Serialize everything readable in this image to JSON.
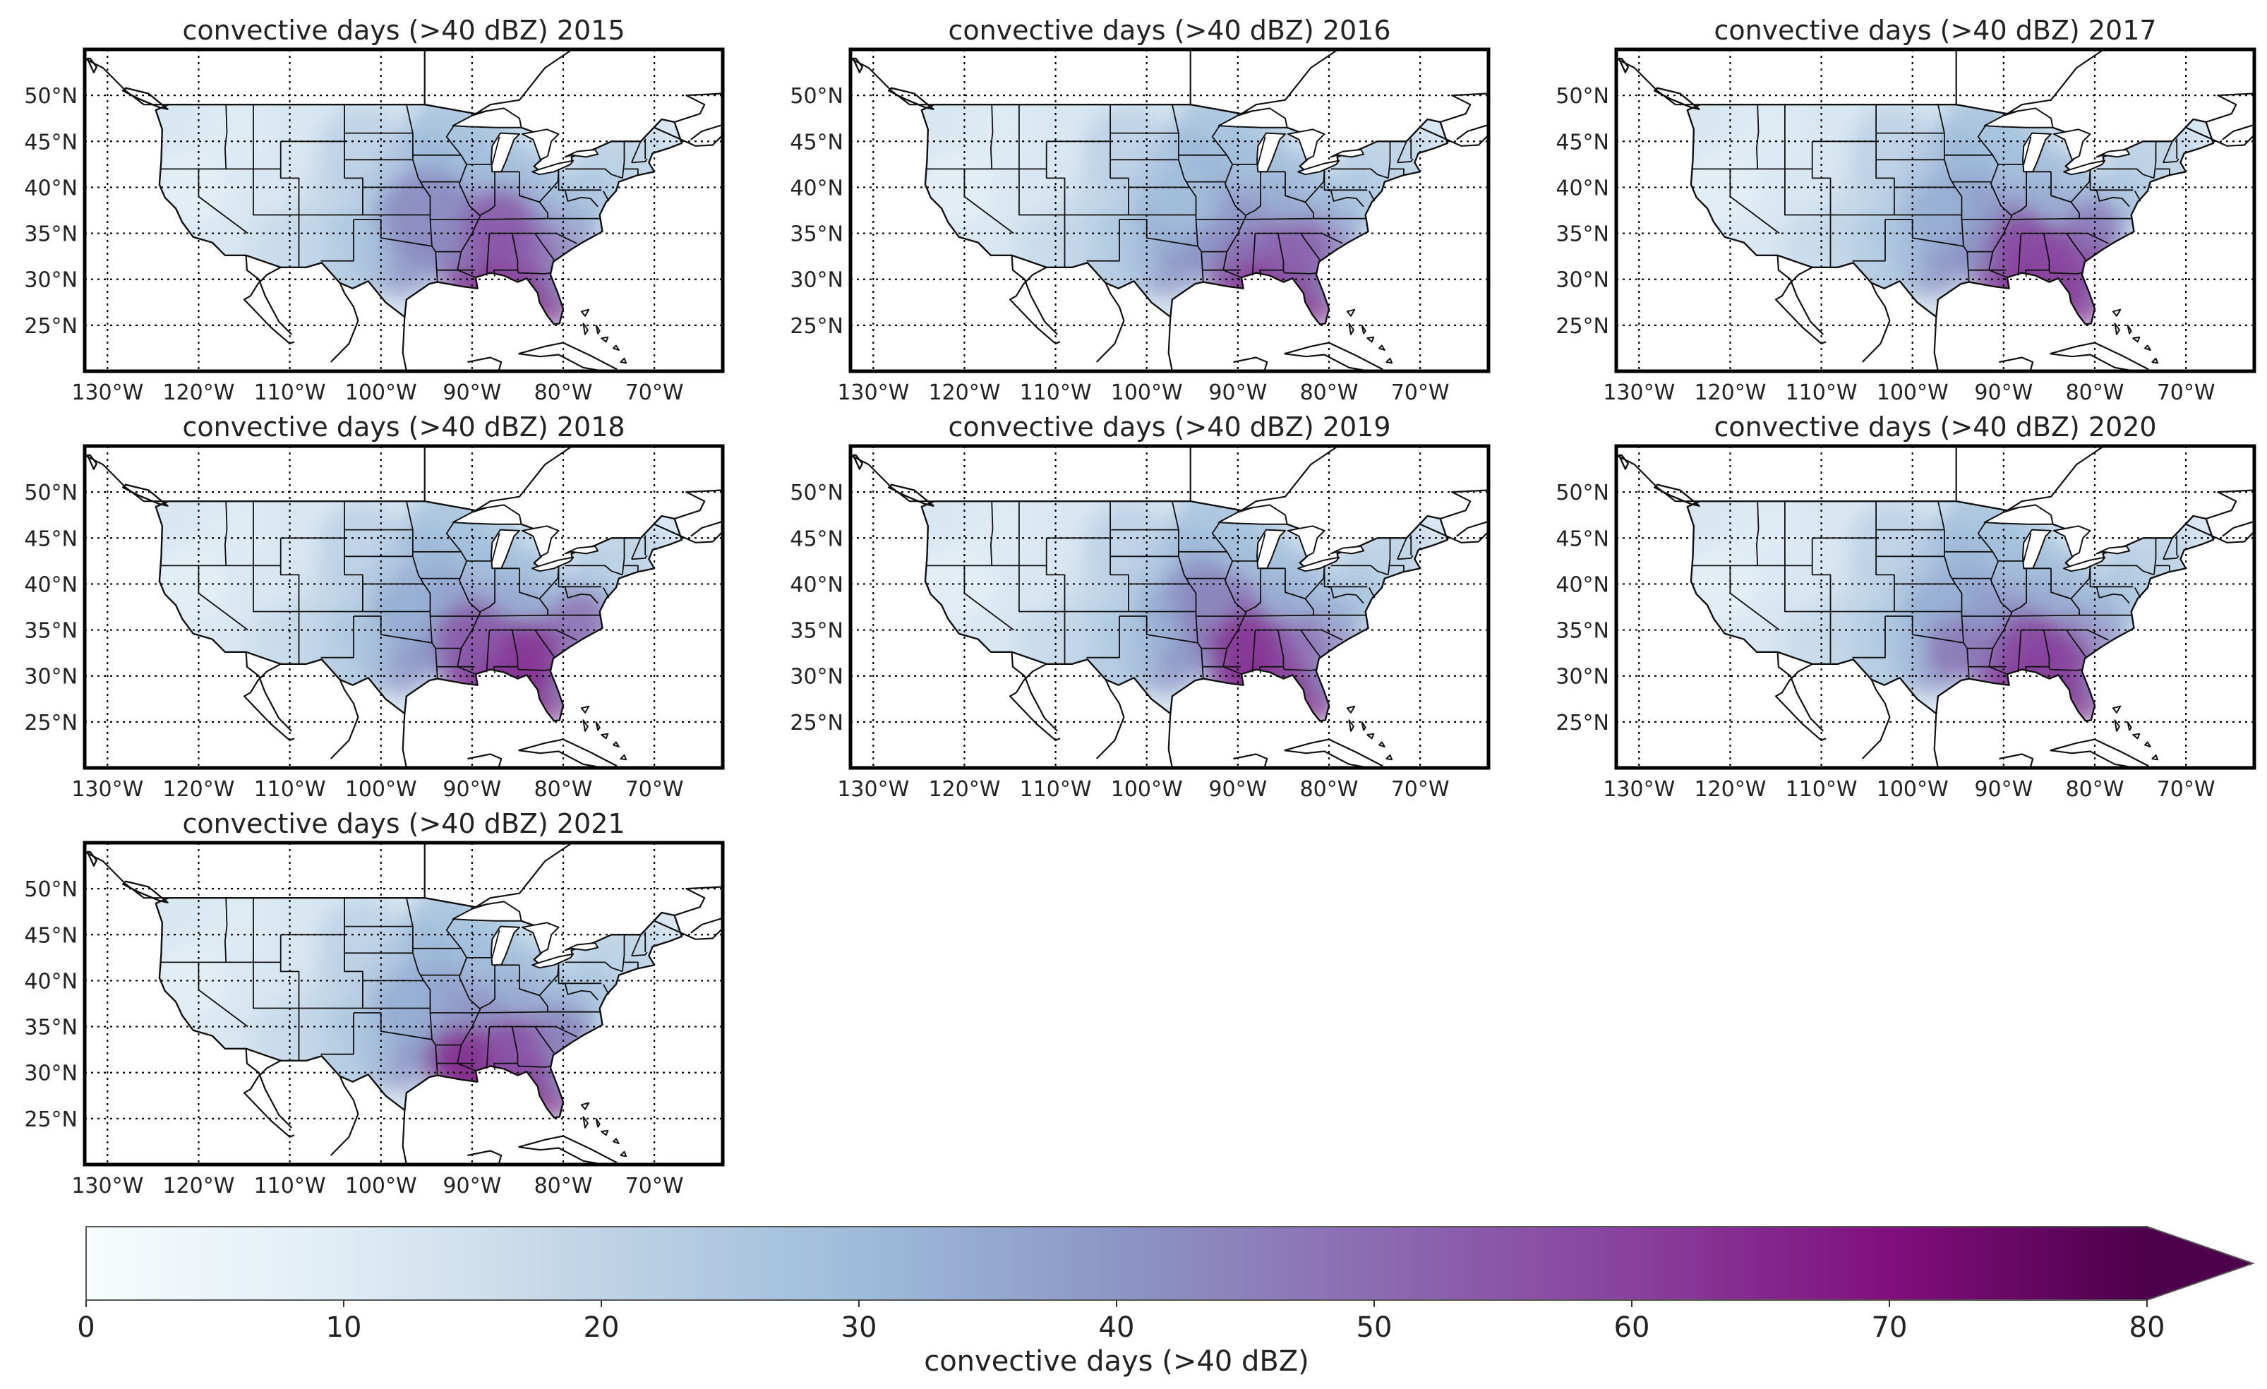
{
  "figure": {
    "panels": [
      {
        "title": "convective days (>40 dBZ) 2015",
        "year": 2015
      },
      {
        "title": "convective days (>40 dBZ) 2016",
        "year": 2016
      },
      {
        "title": "convective days (>40 dBZ) 2017",
        "year": 2017
      },
      {
        "title": "convective days (>40 dBZ) 2018",
        "year": 2018
      },
      {
        "title": "convective days (>40 dBZ) 2019",
        "year": 2019
      },
      {
        "title": "convective days (>40 dBZ) 2020",
        "year": 2020
      },
      {
        "title": "convective days (>40 dBZ) 2021",
        "year": 2021
      }
    ],
    "map_extent": {
      "lon_min": -132.5,
      "lon_max": -62.5,
      "lat_min": 20,
      "lat_max": 55
    },
    "lat_ticks": [
      {
        "value": 50,
        "label": "50°N"
      },
      {
        "value": 45,
        "label": "45°N"
      },
      {
        "value": 40,
        "label": "40°N"
      },
      {
        "value": 35,
        "label": "35°N"
      },
      {
        "value": 30,
        "label": "30°N"
      },
      {
        "value": 25,
        "label": "25°N"
      }
    ],
    "lon_ticks": [
      {
        "value": -130,
        "label": "130°W"
      },
      {
        "value": -120,
        "label": "120°W"
      },
      {
        "value": -110,
        "label": "110°W"
      },
      {
        "value": -100,
        "label": "100°W"
      },
      {
        "value": -90,
        "label": "90°W"
      },
      {
        "value": -80,
        "label": "80°W"
      },
      {
        "value": -70,
        "label": "70°W"
      }
    ],
    "colorbar": {
      "label": "convective days (>40 dBZ)",
      "min": 0,
      "max": 80,
      "extend": "max",
      "ticks": [
        {
          "value": 0,
          "label": "0"
        },
        {
          "value": 10,
          "label": "10"
        },
        {
          "value": 20,
          "label": "20"
        },
        {
          "value": 30,
          "label": "30"
        },
        {
          "value": 40,
          "label": "40"
        },
        {
          "value": 50,
          "label": "50"
        },
        {
          "value": 60,
          "label": "60"
        },
        {
          "value": 70,
          "label": "70"
        },
        {
          "value": 80,
          "label": "80"
        }
      ],
      "colors": [
        "#f7fcfd",
        "#e0ecf4",
        "#bfd3e6",
        "#9ebcda",
        "#8c96c6",
        "#8c6bb1",
        "#88419d",
        "#810f7c",
        "#4d004b"
      ]
    }
  }
}
